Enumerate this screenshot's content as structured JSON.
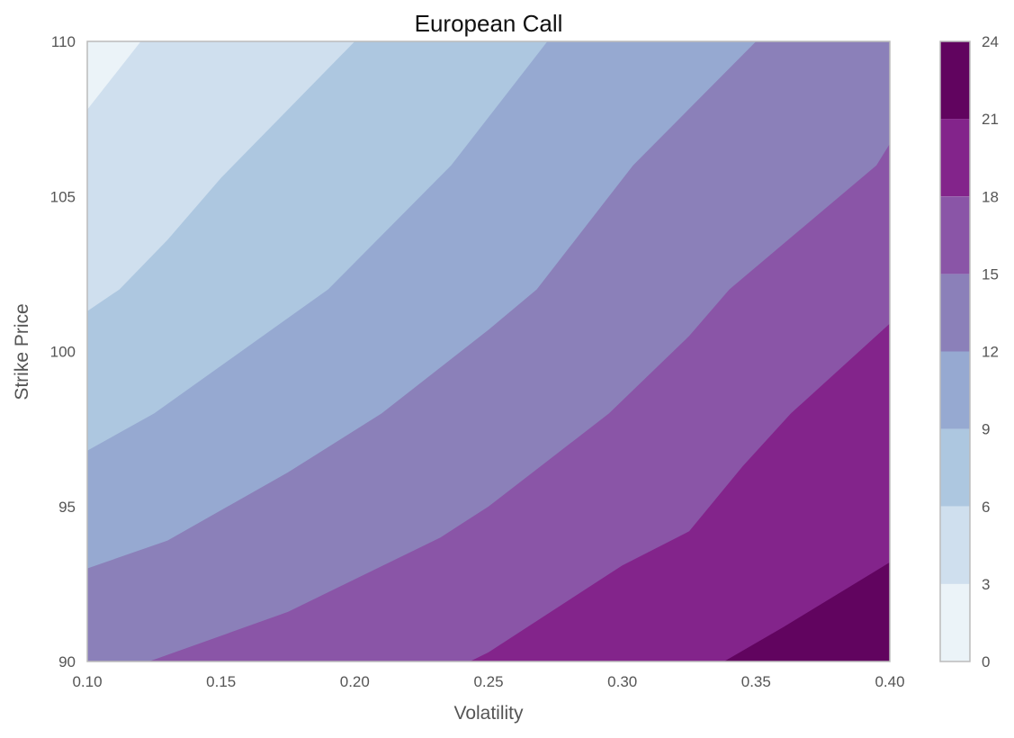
{
  "chart_data": {
    "type": "contour",
    "title": "European Call",
    "xlabel": "Volatility",
    "ylabel": "Strike Price",
    "xlim": [
      0.1,
      0.4
    ],
    "ylim": [
      90,
      110
    ],
    "x_ticks": [
      "0.10",
      "0.15",
      "0.20",
      "0.25",
      "0.30",
      "0.35",
      "0.40"
    ],
    "y_ticks": [
      "90",
      "95",
      "100",
      "105",
      "110"
    ],
    "grid": false,
    "colorbar": {
      "ticks": [
        "0",
        "3",
        "6",
        "9",
        "12",
        "15",
        "18",
        "21",
        "24"
      ],
      "levels": [
        0,
        3,
        6,
        9,
        12,
        15,
        18,
        21,
        24
      ],
      "colors": [
        "#ebf3f8",
        "#cfdfee",
        "#adc7e0",
        "#96a9d1",
        "#8b80b9",
        "#8a55a7",
        "#83248b",
        "#61045f"
      ]
    },
    "boundaries": [
      {
        "level": 3,
        "points": [
          [
            0.1,
            107.8
          ],
          [
            0.12,
            110
          ]
        ]
      },
      {
        "level": 6,
        "points": [
          [
            0.1,
            101.3
          ],
          [
            0.112,
            102
          ],
          [
            0.13,
            103.6
          ],
          [
            0.15,
            105.6
          ],
          [
            0.2,
            110
          ]
        ]
      },
      {
        "level": 9,
        "points": [
          [
            0.1,
            96.8
          ],
          [
            0.125,
            98
          ],
          [
            0.19,
            102
          ],
          [
            0.236,
            106
          ],
          [
            0.272,
            110
          ]
        ]
      },
      {
        "level": 12,
        "points": [
          [
            0.1,
            93
          ],
          [
            0.13,
            93.9
          ],
          [
            0.175,
            96.1
          ],
          [
            0.21,
            98
          ],
          [
            0.25,
            100.7
          ],
          [
            0.268,
            102
          ],
          [
            0.304,
            106
          ],
          [
            0.35,
            110
          ]
        ]
      },
      {
        "level": 15,
        "points": [
          [
            0.123,
            90
          ],
          [
            0.175,
            91.6
          ],
          [
            0.232,
            94
          ],
          [
            0.25,
            95
          ],
          [
            0.295,
            98
          ],
          [
            0.325,
            100.5
          ],
          [
            0.34,
            102
          ],
          [
            0.395,
            106
          ],
          [
            0.4,
            106.7
          ]
        ]
      },
      {
        "level": 18,
        "points": [
          [
            0.243,
            90
          ],
          [
            0.25,
            90.3
          ],
          [
            0.3,
            93.1
          ],
          [
            0.325,
            94.2
          ],
          [
            0.345,
            96.3
          ],
          [
            0.363,
            98
          ],
          [
            0.4,
            100.9
          ]
        ]
      },
      {
        "level": 21,
        "points": [
          [
            0.338,
            90
          ],
          [
            0.36,
            91.1
          ],
          [
            0.4,
            93.2
          ]
        ]
      }
    ]
  }
}
